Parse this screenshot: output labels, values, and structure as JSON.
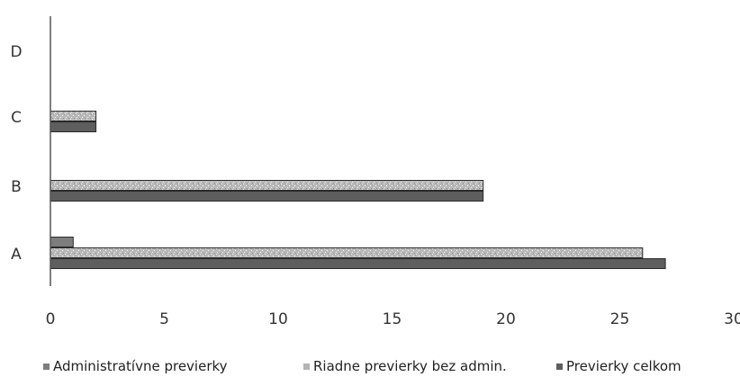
{
  "chart_data": {
    "type": "bar",
    "orientation": "horizontal",
    "categories": [
      "A",
      "B",
      "C",
      "D"
    ],
    "series": [
      {
        "name": "Administratívne previerky",
        "values": [
          1,
          0,
          0,
          0
        ],
        "color": "#7d7d7d"
      },
      {
        "name": "Riadne previerky bez admin.",
        "values": [
          26,
          19,
          2,
          0
        ],
        "color": "#b4b4b4"
      },
      {
        "name": "Previerky celkom",
        "values": [
          27,
          19,
          2,
          0
        ],
        "color": "#5e5e5e"
      }
    ],
    "legend_labels": [
      "Administratívne previerky",
      "Riadne previerky bez admin.",
      "Previerky celkom"
    ],
    "xlim": [
      0,
      30
    ],
    "xticks": [
      "0",
      "5",
      "10",
      "15",
      "20",
      "25",
      "30"
    ],
    "grid": false,
    "legend_position": "bottom",
    "title": "",
    "xlabel": "",
    "ylabel": ""
  }
}
